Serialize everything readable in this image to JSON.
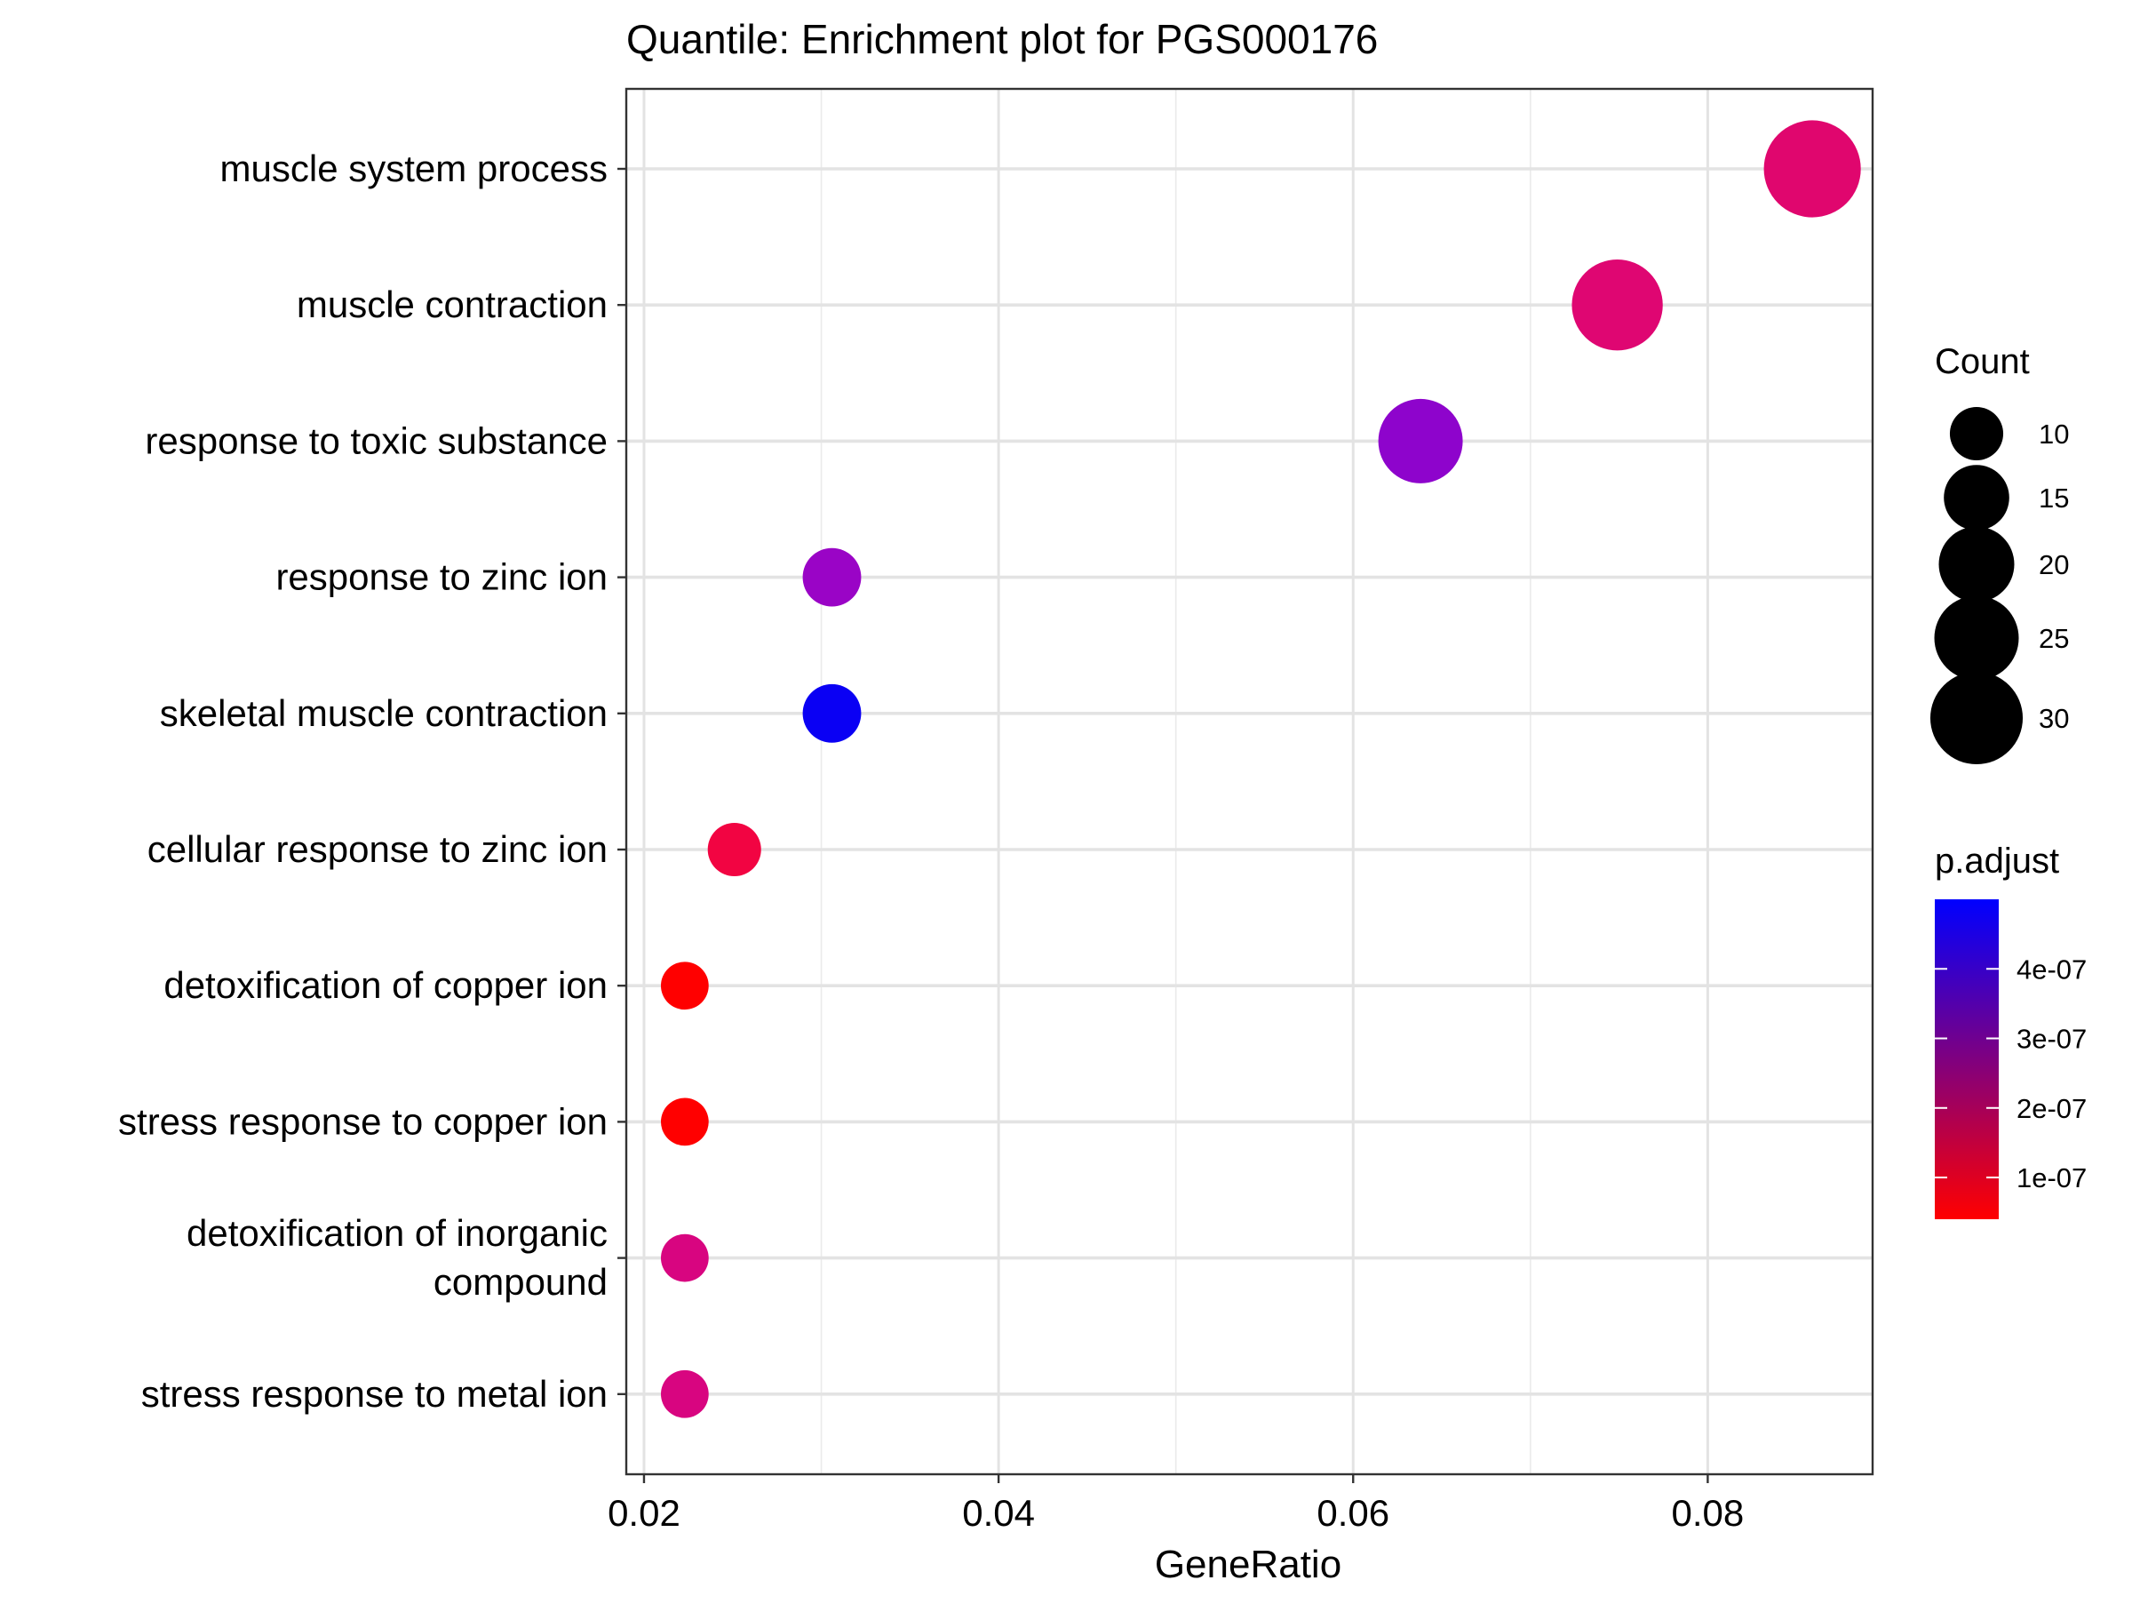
{
  "chart_data": {
    "type": "scatter",
    "title": "Quantile: Enrichment plot for PGS000176",
    "xlabel": "GeneRatio",
    "ylabel": "",
    "xlim": [
      0.019,
      0.0893
    ],
    "x_ticks": [
      0.02,
      0.04,
      0.06,
      0.08
    ],
    "x_tick_labels": [
      "0.02",
      "0.04",
      "0.06",
      "0.08"
    ],
    "x_minor_ticks": [
      0.03,
      0.05,
      0.07
    ],
    "grid": true,
    "categories": [
      "muscle system process",
      "muscle contraction",
      "response to toxic substance",
      "response to zinc ion",
      "skeletal muscle contraction",
      "cellular response to zinc ion",
      "detoxification of copper ion",
      "stress response to copper ion",
      "detoxification of inorganic compound",
      "stress response to metal ion"
    ],
    "category_display_lines": [
      [
        "muscle system process"
      ],
      [
        "muscle contraction"
      ],
      [
        "response to toxic substance"
      ],
      [
        "response to zinc ion"
      ],
      [
        "skeletal muscle contraction"
      ],
      [
        "cellular response to zinc ion"
      ],
      [
        "detoxification of copper ion"
      ],
      [
        "stress response to copper ion"
      ],
      [
        "detoxification of inorganic",
        "compound"
      ],
      [
        "stress response to metal ion"
      ]
    ],
    "points": [
      {
        "term": "muscle system process",
        "gene_ratio": 0.0859,
        "count": 33,
        "p_adjust": 2.3e-07,
        "color": "#e0066e"
      },
      {
        "term": "muscle contraction",
        "gene_ratio": 0.0749,
        "count": 29,
        "p_adjust": 2.2e-07,
        "color": "#df0672"
      },
      {
        "term": "response to toxic substance",
        "gene_ratio": 0.0638,
        "count": 25,
        "p_adjust": 4e-07,
        "color": "#8e04cc"
      },
      {
        "term": "response to zinc ion",
        "gene_ratio": 0.0306,
        "count": 12,
        "p_adjust": 3.9e-07,
        "color": "#9a04c6"
      },
      {
        "term": "skeletal muscle contraction",
        "gene_ratio": 0.0306,
        "count": 12,
        "p_adjust": 5e-07,
        "color": "#0a00f4"
      },
      {
        "term": "cellular response to zinc ion",
        "gene_ratio": 0.0251,
        "count": 10,
        "p_adjust": 1.2e-07,
        "color": "#f20442"
      },
      {
        "term": "detoxification of copper ion",
        "gene_ratio": 0.0223,
        "count": 8,
        "p_adjust": 4e-08,
        "color": "#ff0000"
      },
      {
        "term": "stress response to copper ion",
        "gene_ratio": 0.0223,
        "count": 8,
        "p_adjust": 4e-08,
        "color": "#ff0000"
      },
      {
        "term": "detoxification of inorganic compound",
        "gene_ratio": 0.0223,
        "count": 8,
        "p_adjust": 2.5e-07,
        "color": "#d80580"
      },
      {
        "term": "stress response to metal ion",
        "gene_ratio": 0.0223,
        "count": 8,
        "p_adjust": 2.5e-07,
        "color": "#d80580"
      }
    ],
    "legend_size": {
      "title": "Count",
      "values": [
        10,
        15,
        20,
        25,
        30
      ],
      "labels": [
        "10",
        "15",
        "20",
        "25",
        "30"
      ],
      "placement": "right"
    },
    "legend_color": {
      "title": "p.adjust",
      "range": [
        4e-08,
        5e-07
      ],
      "low_color": "#ff0000",
      "high_color": "#0000ff",
      "ticks": [
        1e-07,
        2e-07,
        3e-07,
        4e-07
      ],
      "labels": [
        "1e-07",
        "2e-07",
        "3e-07",
        "4e-07"
      ],
      "placement": "right"
    }
  }
}
